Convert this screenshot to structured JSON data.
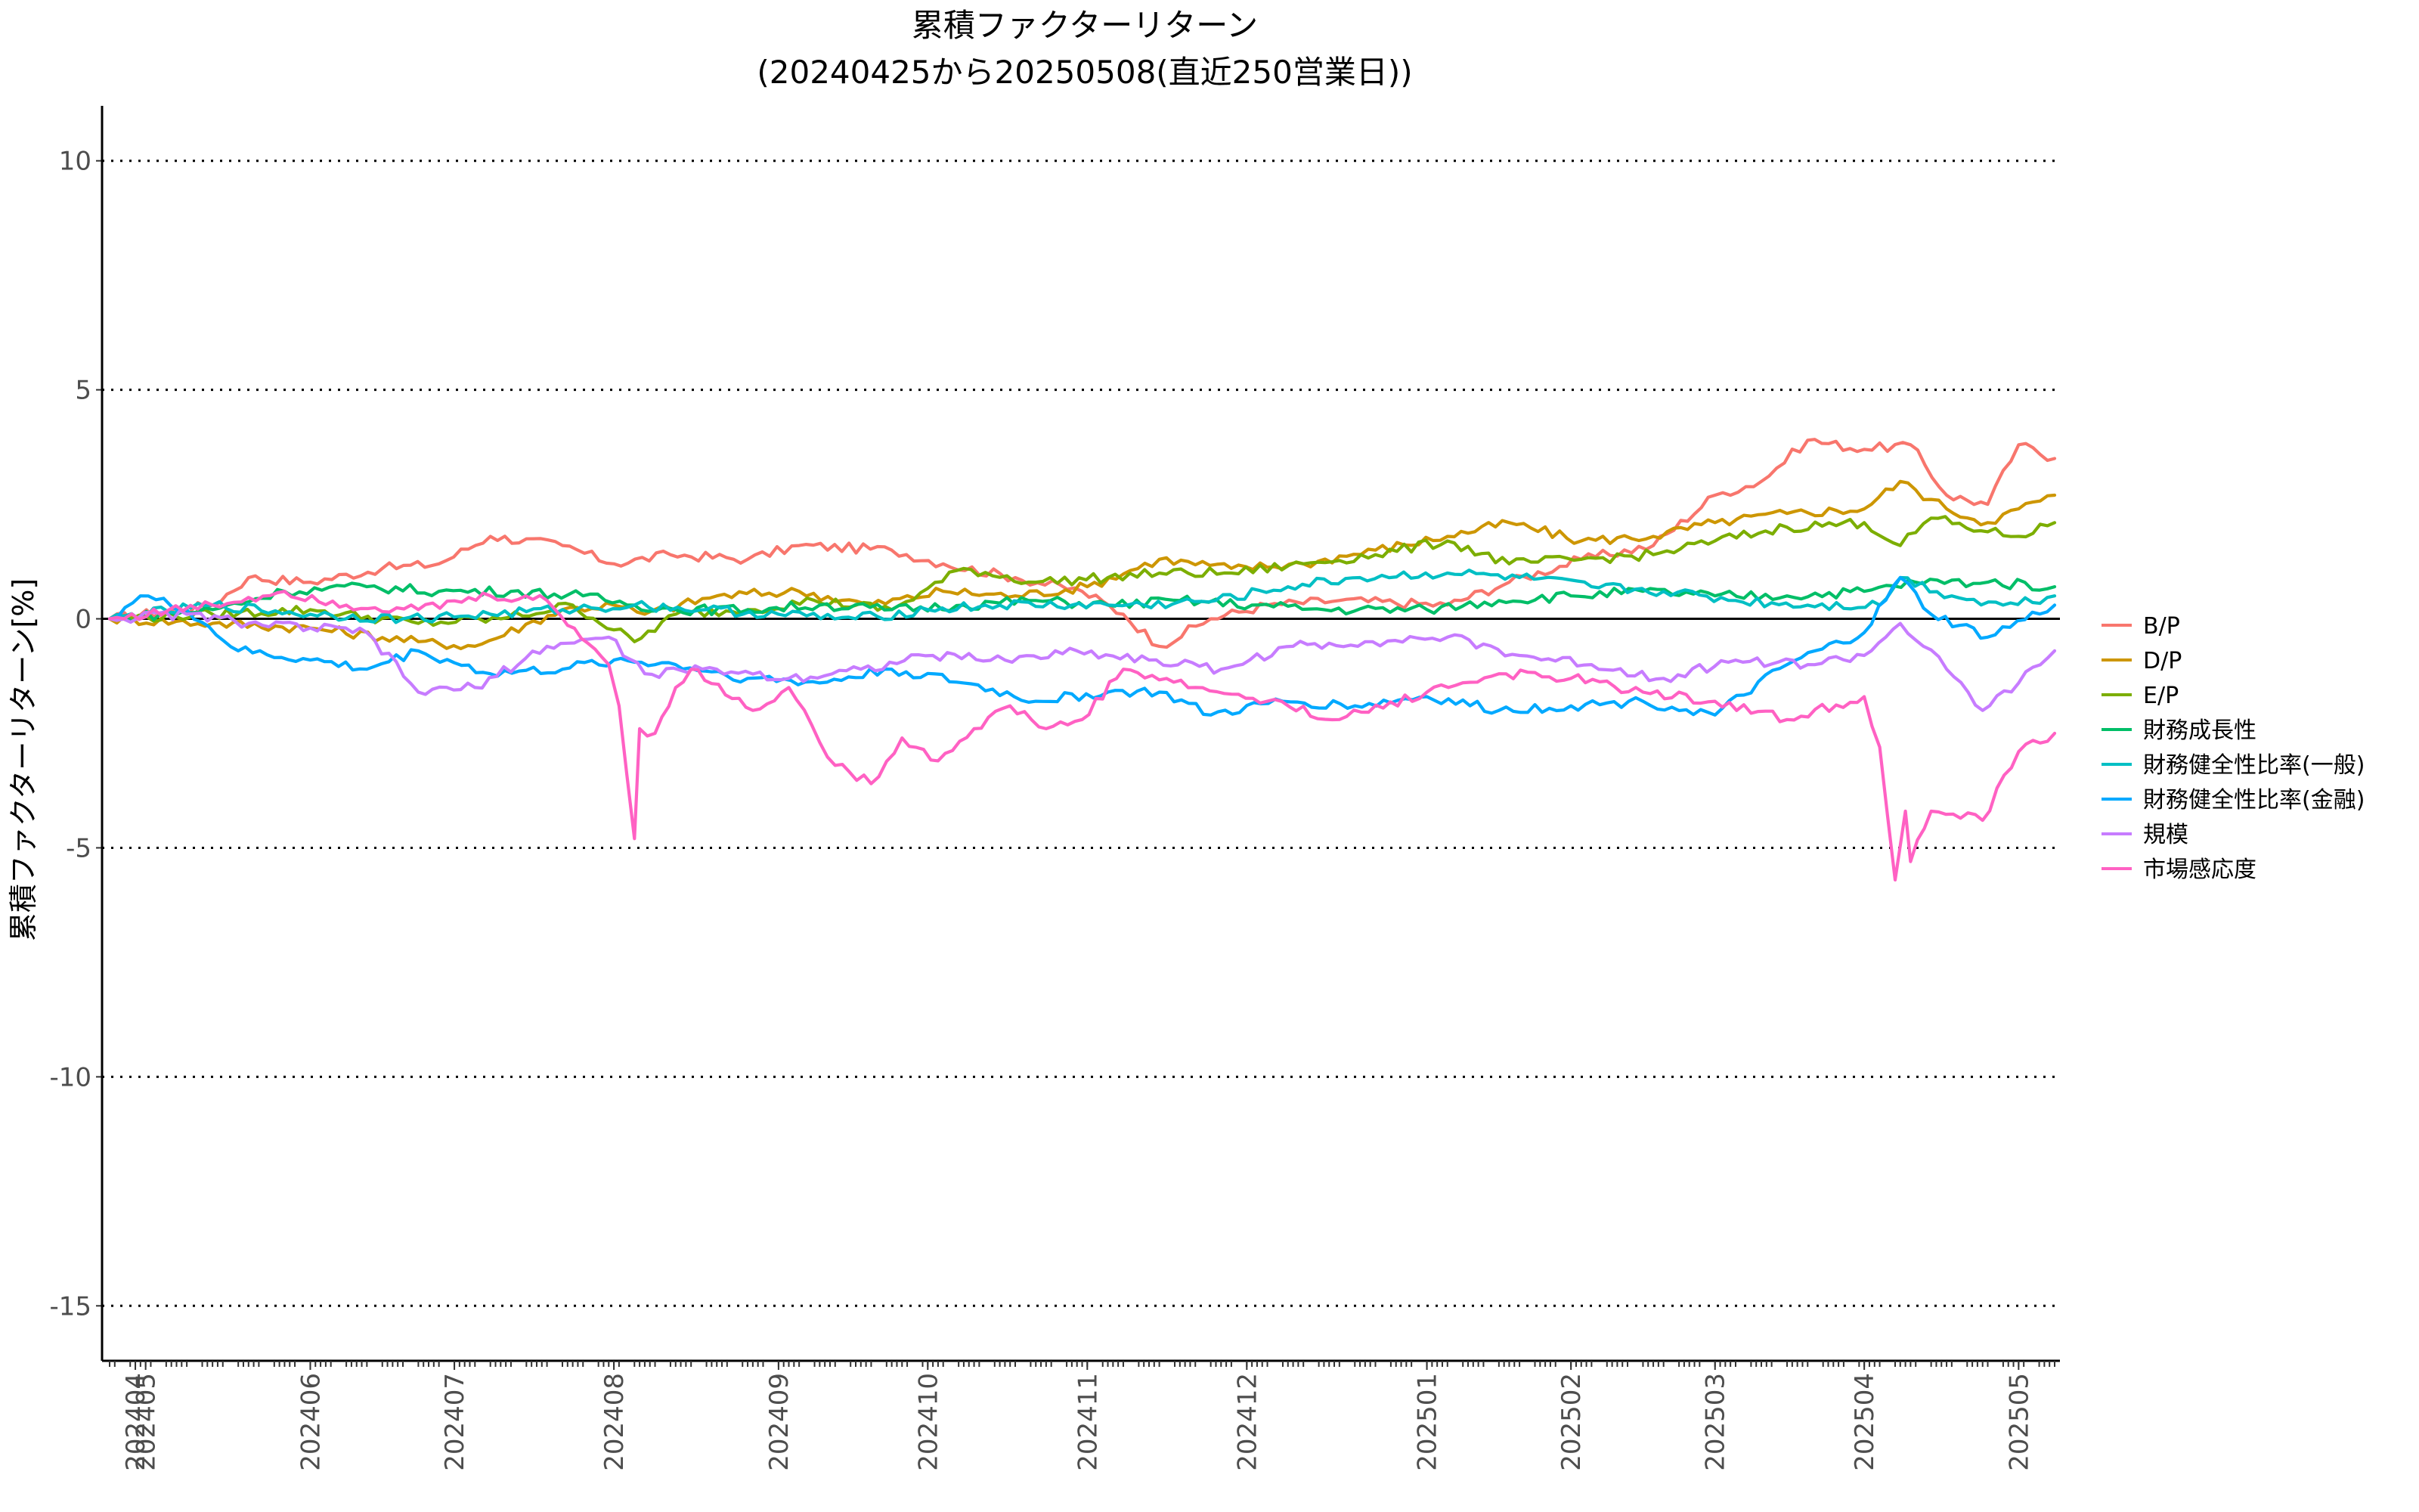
{
  "chart_data": {
    "type": "line",
    "title": "累積ファクターリターン",
    "subtitle": "(20240425から20250508(直近250営業日))",
    "ylabel": "累積ファクターリターン[%]",
    "xlabel": "",
    "ylim": [
      -16.2,
      11.2
    ],
    "yticks": [
      10,
      5,
      0,
      -5,
      -10,
      -15
    ],
    "grid": "dotted horizontal at y ticks",
    "legend_position": "right",
    "x_tick_labels": [
      "202404",
      "202405",
      "202406",
      "202407",
      "202408",
      "202409",
      "202410",
      "202411",
      "202412",
      "202501",
      "202502",
      "202503",
      "202504",
      "202505"
    ],
    "x_tick_dates": [
      "2024-04-30",
      "2024-05-02",
      "2024-06-03",
      "2024-07-01",
      "2024-08-01",
      "2024-09-02",
      "2024-10-01",
      "2024-11-01",
      "2024-12-02",
      "2025-01-06",
      "2025-02-03",
      "2025-03-03",
      "2025-04-01",
      "2025-05-01"
    ],
    "x_range": [
      "2024-04-25",
      "2025-05-08"
    ],
    "series": [
      {
        "name": "B/P",
        "color": "#F8766D",
        "points": [
          [
            "2024-04-25",
            0
          ],
          [
            "2024-05-15",
            0.3
          ],
          [
            "2024-05-22",
            0.9
          ],
          [
            "2024-06-03",
            0.8
          ],
          [
            "2024-06-17",
            1.1
          ],
          [
            "2024-06-28",
            1.2
          ],
          [
            "2024-07-08",
            1.8
          ],
          [
            "2024-07-22",
            1.6
          ],
          [
            "2024-08-01",
            1.2
          ],
          [
            "2024-08-12",
            1.4
          ],
          [
            "2024-08-27",
            1.3
          ],
          [
            "2024-09-06",
            1.6
          ],
          [
            "2024-09-24",
            1.5
          ],
          [
            "2024-10-04",
            1.2
          ],
          [
            "2024-10-18",
            0.9
          ],
          [
            "2024-10-31",
            0.6
          ],
          [
            "2024-11-08",
            0.1
          ],
          [
            "2024-11-15",
            -0.6
          ],
          [
            "2024-11-25",
            0
          ],
          [
            "2024-12-06",
            0.3
          ],
          [
            "2024-12-20",
            0.4
          ],
          [
            "2025-01-10",
            0.3
          ],
          [
            "2025-01-22",
            0.8
          ],
          [
            "2025-02-05",
            1.3
          ],
          [
            "2025-02-19",
            1.6
          ],
          [
            "2025-03-03",
            2.7
          ],
          [
            "2025-03-12",
            3.0
          ],
          [
            "2025-03-21",
            3.9
          ],
          [
            "2025-04-01",
            3.7
          ],
          [
            "2025-04-10",
            3.8
          ],
          [
            "2025-04-17",
            2.7
          ],
          [
            "2025-04-25",
            2.5
          ],
          [
            "2025-05-01",
            3.8
          ],
          [
            "2025-05-08",
            3.5
          ]
        ]
      },
      {
        "name": "D/P",
        "color": "#CD9600",
        "points": [
          [
            "2024-04-25",
            0
          ],
          [
            "2024-05-15",
            -0.1
          ],
          [
            "2024-06-03",
            -0.2
          ],
          [
            "2024-06-24",
            -0.5
          ],
          [
            "2024-07-05",
            -0.6
          ],
          [
            "2024-07-22",
            0.2
          ],
          [
            "2024-08-01",
            0.3
          ],
          [
            "2024-08-07",
            0.1
          ],
          [
            "2024-08-21",
            0.5
          ],
          [
            "2024-09-06",
            0.6
          ],
          [
            "2024-09-20",
            0.3
          ],
          [
            "2024-10-04",
            0.6
          ],
          [
            "2024-10-18",
            0.5
          ],
          [
            "2024-11-01",
            0.7
          ],
          [
            "2024-11-15",
            1.3
          ],
          [
            "2024-11-29",
            1.1
          ],
          [
            "2024-12-13",
            1.2
          ],
          [
            "2024-12-27",
            1.5
          ],
          [
            "2025-01-10",
            1.8
          ],
          [
            "2025-01-22",
            2.1
          ],
          [
            "2025-02-05",
            1.7
          ],
          [
            "2025-02-19",
            1.8
          ],
          [
            "2025-03-03",
            2.1
          ],
          [
            "2025-03-17",
            2.3
          ],
          [
            "2025-04-01",
            2.4
          ],
          [
            "2025-04-08",
            3.0
          ],
          [
            "2025-04-17",
            2.4
          ],
          [
            "2025-04-25",
            2.1
          ],
          [
            "2025-05-01",
            2.4
          ],
          [
            "2025-05-08",
            2.7
          ]
        ]
      },
      {
        "name": "E/P",
        "color": "#7CAE00",
        "points": [
          [
            "2024-04-25",
            0
          ],
          [
            "2024-05-15",
            0.1
          ],
          [
            "2024-06-03",
            0.2
          ],
          [
            "2024-06-24",
            -0.1
          ],
          [
            "2024-07-10",
            0
          ],
          [
            "2024-07-24",
            0.3
          ],
          [
            "2024-08-05",
            -0.5
          ],
          [
            "2024-08-13",
            0.1
          ],
          [
            "2024-08-27",
            0.2
          ],
          [
            "2024-09-09",
            0.4
          ],
          [
            "2024-09-24",
            0.2
          ],
          [
            "2024-10-08",
            1.1
          ],
          [
            "2024-10-22",
            0.8
          ],
          [
            "2024-11-05",
            0.9
          ],
          [
            "2024-11-15",
            1.0
          ],
          [
            "2024-11-29",
            1.0
          ],
          [
            "2024-12-13",
            1.2
          ],
          [
            "2024-12-27",
            1.4
          ],
          [
            "2025-01-10",
            1.7
          ],
          [
            "2025-01-22",
            1.2
          ],
          [
            "2025-02-05",
            1.3
          ],
          [
            "2025-02-19",
            1.4
          ],
          [
            "2025-03-03",
            1.7
          ],
          [
            "2025-03-17",
            2.0
          ],
          [
            "2025-04-01",
            2.1
          ],
          [
            "2025-04-08",
            1.6
          ],
          [
            "2025-04-14",
            2.2
          ],
          [
            "2025-04-25",
            1.9
          ],
          [
            "2025-05-01",
            1.8
          ],
          [
            "2025-05-08",
            2.1
          ]
        ]
      },
      {
        "name": "財務成長性",
        "color": "#00BE67",
        "points": [
          [
            "2024-04-25",
            0
          ],
          [
            "2024-05-15",
            0.2
          ],
          [
            "2024-05-29",
            0.6
          ],
          [
            "2024-06-14",
            0.7
          ],
          [
            "2024-06-28",
            0.6
          ],
          [
            "2024-07-12",
            0.6
          ],
          [
            "2024-07-26",
            0.5
          ],
          [
            "2024-08-05",
            0.3
          ],
          [
            "2024-08-13",
            0.2
          ],
          [
            "2024-08-27",
            0.2
          ],
          [
            "2024-09-10",
            0.3
          ],
          [
            "2024-09-24",
            0.2
          ],
          [
            "2024-10-08",
            0.3
          ],
          [
            "2024-10-22",
            0.4
          ],
          [
            "2024-11-05",
            0.3
          ],
          [
            "2024-11-19",
            0.4
          ],
          [
            "2024-12-03",
            0.3
          ],
          [
            "2024-12-17",
            0.2
          ],
          [
            "2025-01-06",
            0.2
          ],
          [
            "2025-01-20",
            0.4
          ],
          [
            "2025-02-03",
            0.5
          ],
          [
            "2025-02-17",
            0.6
          ],
          [
            "2025-03-03",
            0.5
          ],
          [
            "2025-03-17",
            0.5
          ],
          [
            "2025-04-01",
            0.6
          ],
          [
            "2025-04-11",
            0.8
          ],
          [
            "2025-04-25",
            0.8
          ],
          [
            "2025-05-08",
            0.7
          ]
        ]
      },
      {
        "name": "財務健全性比率(一般)",
        "color": "#00BFC4",
        "points": [
          [
            "2024-04-25",
            0
          ],
          [
            "2024-05-15",
            0.3
          ],
          [
            "2024-06-03",
            0.1
          ],
          [
            "2024-06-21",
            0
          ],
          [
            "2024-07-08",
            0.1
          ],
          [
            "2024-07-22",
            0.2
          ],
          [
            "2024-08-05",
            0.3
          ],
          [
            "2024-08-19",
            0.2
          ],
          [
            "2024-09-02",
            0.1
          ],
          [
            "2024-09-17",
            0
          ],
          [
            "2024-10-01",
            0.2
          ],
          [
            "2024-10-15",
            0.3
          ],
          [
            "2024-10-29",
            0.3
          ],
          [
            "2024-11-12",
            0.3
          ],
          [
            "2024-11-26",
            0.4
          ],
          [
            "2024-12-10",
            0.7
          ],
          [
            "2024-12-24",
            0.9
          ],
          [
            "2025-01-10",
            1.0
          ],
          [
            "2025-01-24",
            0.9
          ],
          [
            "2025-02-07",
            0.7
          ],
          [
            "2025-02-21",
            0.6
          ],
          [
            "2025-03-07",
            0.4
          ],
          [
            "2025-03-21",
            0.3
          ],
          [
            "2025-04-04",
            0.3
          ],
          [
            "2025-04-08",
            0.9
          ],
          [
            "2025-04-18",
            0.5
          ],
          [
            "2025-04-28",
            0.3
          ],
          [
            "2025-05-08",
            0.5
          ]
        ]
      },
      {
        "name": "財務健全性比率(金融)",
        "color": "#00A9FF",
        "points": [
          [
            "2024-04-25",
            0
          ],
          [
            "2024-05-01",
            0.5
          ],
          [
            "2024-05-10",
            0.2
          ],
          [
            "2024-05-20",
            -0.7
          ],
          [
            "2024-06-03",
            -0.9
          ],
          [
            "2024-06-14",
            -1.1
          ],
          [
            "2024-06-24",
            -0.7
          ],
          [
            "2024-07-08",
            -1.2
          ],
          [
            "2024-07-22",
            -1.1
          ],
          [
            "2024-08-01",
            -0.9
          ],
          [
            "2024-08-13",
            -1.0
          ],
          [
            "2024-08-27",
            -1.3
          ],
          [
            "2024-09-10",
            -1.4
          ],
          [
            "2024-09-24",
            -1.1
          ],
          [
            "2024-10-08",
            -1.4
          ],
          [
            "2024-10-22",
            -1.8
          ],
          [
            "2024-11-05",
            -1.6
          ],
          [
            "2024-11-15",
            -1.6
          ],
          [
            "2024-11-25",
            -2.1
          ],
          [
            "2024-12-09",
            -1.8
          ],
          [
            "2024-12-23",
            -1.9
          ],
          [
            "2025-01-06",
            -1.7
          ],
          [
            "2025-01-20",
            -2.0
          ],
          [
            "2025-02-03",
            -1.9
          ],
          [
            "2025-02-17",
            -1.8
          ],
          [
            "2025-03-03",
            -2.1
          ],
          [
            "2025-03-17",
            -1.0
          ],
          [
            "2025-04-01",
            -0.3
          ],
          [
            "2025-04-08",
            0.9
          ],
          [
            "2025-04-14",
            0.1
          ],
          [
            "2025-04-25",
            -0.4
          ],
          [
            "2025-05-08",
            0.3
          ]
        ]
      },
      {
        "name": "規模",
        "color": "#C77CFF",
        "points": [
          [
            "2024-04-25",
            0
          ],
          [
            "2024-05-10",
            0.1
          ],
          [
            "2024-05-22",
            -0.1
          ],
          [
            "2024-06-03",
            -0.2
          ],
          [
            "2024-06-14",
            -0.3
          ],
          [
            "2024-06-24",
            -1.6
          ],
          [
            "2024-07-05",
            -1.5
          ],
          [
            "2024-07-19",
            -0.6
          ],
          [
            "2024-07-31",
            -0.4
          ],
          [
            "2024-08-07",
            -1.2
          ],
          [
            "2024-08-21",
            -1.1
          ],
          [
            "2024-09-04",
            -1.3
          ],
          [
            "2024-09-18",
            -1.1
          ],
          [
            "2024-10-02",
            -0.8
          ],
          [
            "2024-10-16",
            -0.9
          ],
          [
            "2024-10-30",
            -0.7
          ],
          [
            "2024-11-13",
            -0.9
          ],
          [
            "2024-11-27",
            -1.1
          ],
          [
            "2024-12-11",
            -0.6
          ],
          [
            "2024-12-25",
            -0.5
          ],
          [
            "2025-01-10",
            -0.4
          ],
          [
            "2025-01-24",
            -0.8
          ],
          [
            "2025-02-07",
            -1.0
          ],
          [
            "2025-02-21",
            -1.3
          ],
          [
            "2025-03-07",
            -0.9
          ],
          [
            "2025-03-21",
            -1.0
          ],
          [
            "2025-04-01",
            -0.8
          ],
          [
            "2025-04-08",
            -0.1
          ],
          [
            "2025-04-17",
            -1.1
          ],
          [
            "2025-04-24",
            -2.0
          ],
          [
            "2025-05-01",
            -1.4
          ],
          [
            "2025-05-08",
            -0.7
          ]
        ]
      },
      {
        "name": "市場感応度",
        "color": "#FF61C3",
        "points": [
          [
            "2024-04-25",
            0
          ],
          [
            "2024-05-15",
            0.3
          ],
          [
            "2024-05-29",
            0.6
          ],
          [
            "2024-06-10",
            0.3
          ],
          [
            "2024-06-24",
            0.2
          ],
          [
            "2024-07-08",
            0.5
          ],
          [
            "2024-07-19",
            0.4
          ],
          [
            "2024-07-31",
            -1.0
          ],
          [
            "2024-08-02",
            -1.9
          ],
          [
            "2024-08-05",
            -4.8
          ],
          [
            "2024-08-06",
            -2.4
          ],
          [
            "2024-08-09",
            -2.5
          ],
          [
            "2024-08-13",
            -1.5
          ],
          [
            "2024-08-16",
            -1.1
          ],
          [
            "2024-08-28",
            -2.0
          ],
          [
            "2024-09-04",
            -1.5
          ],
          [
            "2024-09-13",
            -3.2
          ],
          [
            "2024-09-20",
            -3.6
          ],
          [
            "2024-09-26",
            -2.6
          ],
          [
            "2024-10-03",
            -3.1
          ],
          [
            "2024-10-10",
            -2.4
          ],
          [
            "2024-10-17",
            -1.9
          ],
          [
            "2024-10-24",
            -2.4
          ],
          [
            "2024-10-31",
            -2.2
          ],
          [
            "2024-11-08",
            -1.1
          ],
          [
            "2024-11-22",
            -1.5
          ],
          [
            "2024-12-06",
            -1.8
          ],
          [
            "2024-12-20",
            -2.2
          ],
          [
            "2025-01-06",
            -1.6
          ],
          [
            "2025-01-20",
            -1.2
          ],
          [
            "2025-02-03",
            -1.3
          ],
          [
            "2025-02-17",
            -1.6
          ],
          [
            "2025-03-03",
            -1.8
          ],
          [
            "2025-03-17",
            -2.2
          ],
          [
            "2025-04-01",
            -1.7
          ],
          [
            "2025-04-04",
            -2.8
          ],
          [
            "2025-04-07",
            -5.7
          ],
          [
            "2025-04-09",
            -4.2
          ],
          [
            "2025-04-10",
            -5.3
          ],
          [
            "2025-04-14",
            -4.2
          ],
          [
            "2025-04-24",
            -4.4
          ],
          [
            "2025-05-01",
            -2.9
          ],
          [
            "2025-05-08",
            -2.5
          ]
        ]
      }
    ]
  }
}
